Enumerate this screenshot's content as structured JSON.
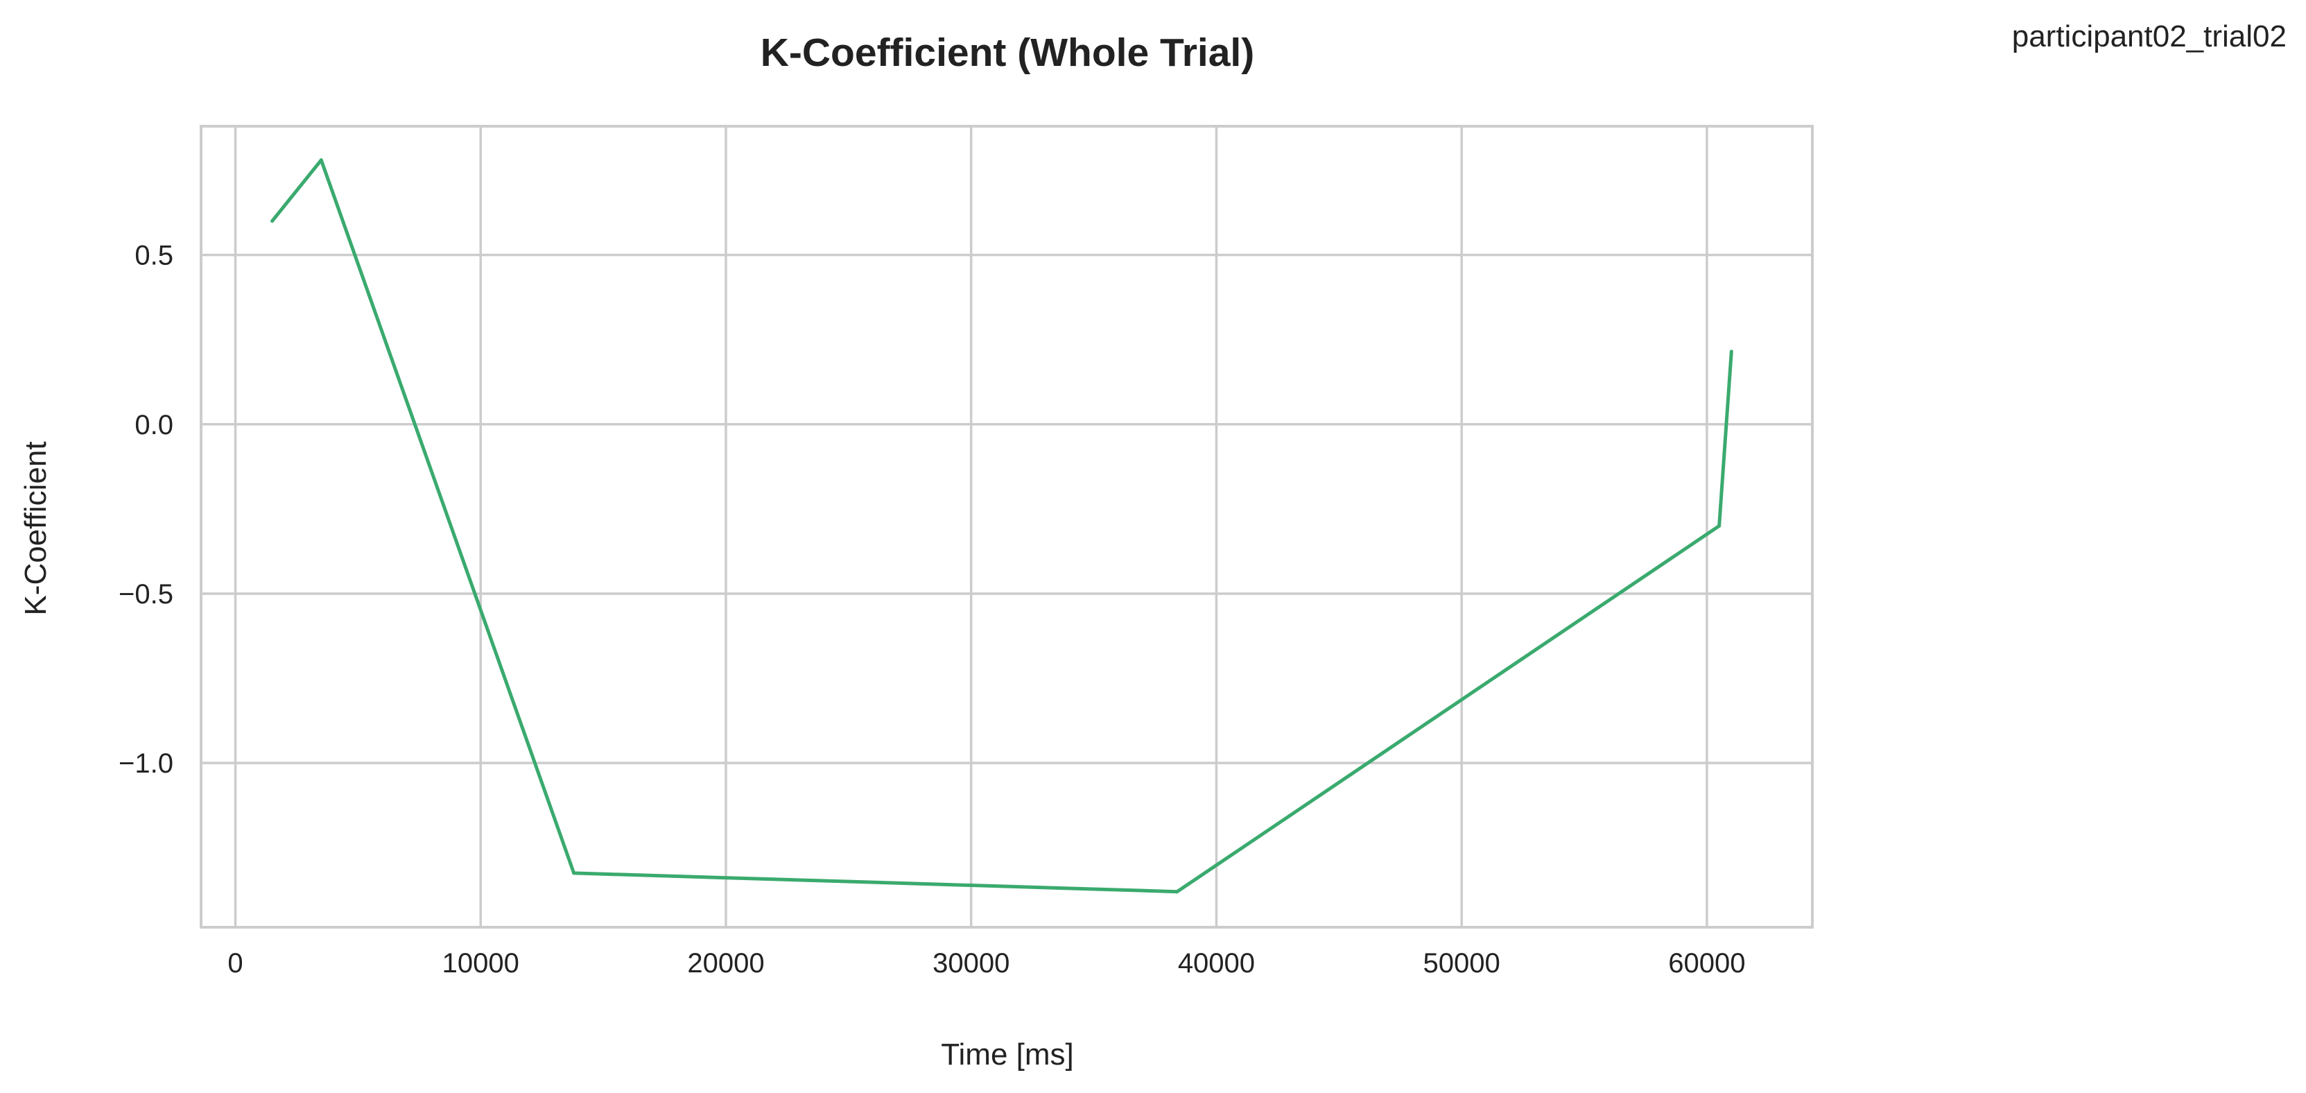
{
  "figure": {
    "corner_label": "participant02_trial02"
  },
  "chart_data": {
    "type": "line",
    "title": "K-Coefficient (Whole Trial)",
    "xlabel": "Time [ms]",
    "ylabel": "K-Coefficient",
    "xlim": [
      -1400,
      64300
    ],
    "ylim": [
      -1.485,
      0.88
    ],
    "grid": true,
    "legend": "none",
    "x_ticks": [
      0,
      10000,
      20000,
      30000,
      40000,
      50000,
      60000
    ],
    "x_tick_labels": [
      "0",
      "10000",
      "20000",
      "30000",
      "40000",
      "50000",
      "60000"
    ],
    "y_ticks": [
      -1.0,
      -0.5,
      0.0,
      0.5
    ],
    "y_tick_labels": [
      "−1.0",
      "−0.5",
      "0.0",
      "0.5"
    ],
    "series": [
      {
        "name": "K-Coefficient",
        "color": "#3aaa6e",
        "x": [
          1500,
          3500,
          13800,
          38400,
          60500,
          61000
        ],
        "y": [
          0.6,
          0.78,
          -1.325,
          -1.38,
          -0.3,
          0.215
        ]
      }
    ]
  }
}
